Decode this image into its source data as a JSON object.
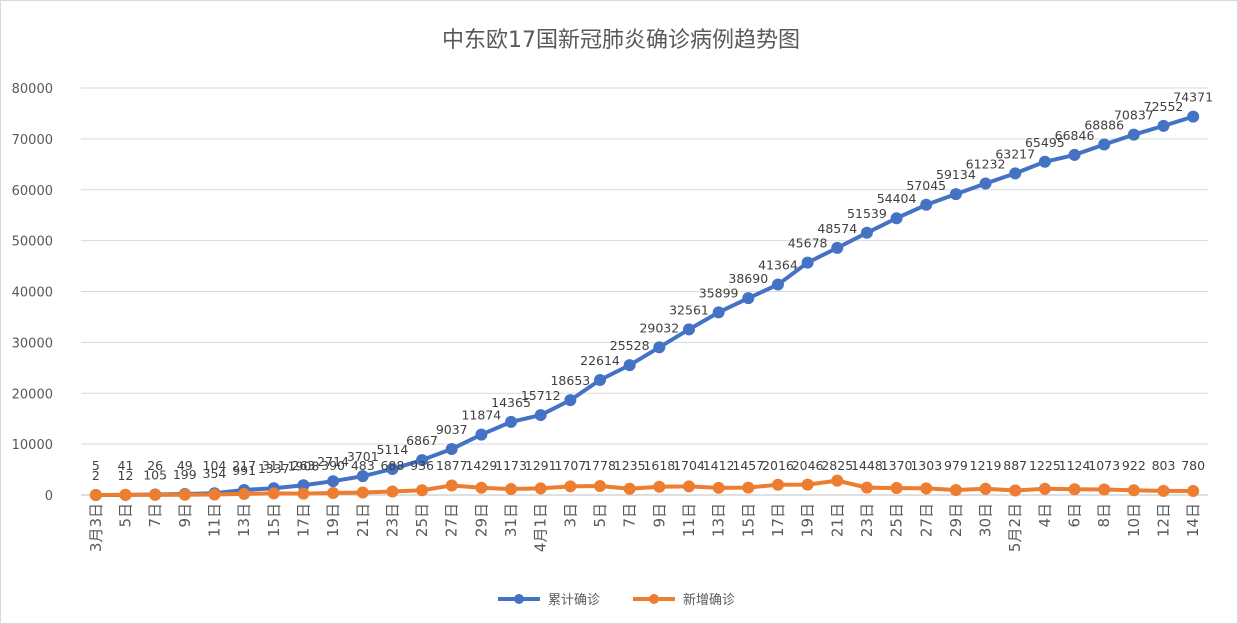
{
  "chart_data": {
    "type": "line",
    "title": "中东欧17国新冠肺炎确诊病例趋势图",
    "xlabel": "",
    "ylabel": "",
    "ylim": [
      0,
      80000
    ],
    "yticks": [
      0,
      10000,
      20000,
      30000,
      40000,
      50000,
      60000,
      70000,
      80000
    ],
    "grid": true,
    "legend_position": "bottom",
    "categories": [
      "3月3日",
      "3月5日",
      "3月7日",
      "3月9日",
      "3月11日",
      "3月13日",
      "3月15日",
      "3月17日",
      "3月19日",
      "3月21日",
      "3月23日",
      "3月25日",
      "3月27日",
      "3月29日",
      "3月31日",
      "4月1日",
      "4月3日",
      "4月5日",
      "4月7日",
      "4月9日",
      "4月11日",
      "4月13日",
      "4月15日",
      "4月17日",
      "4月19日",
      "4月21日",
      "4月23日",
      "4月25日",
      "4月27日",
      "4月29日",
      "4月30日",
      "5月2日",
      "5月4日",
      "5月6日",
      "5月8日",
      "5月10日",
      "5月12日",
      "5月14日"
    ],
    "tick_labels": [
      "3月3日",
      "5日",
      "7日",
      "9日",
      "11日",
      "13日",
      "15日",
      "17日",
      "19日",
      "21日",
      "23日",
      "25日",
      "27日",
      "29日",
      "31日",
      "4月1日",
      "3日",
      "5日",
      "7日",
      "9日",
      "11日",
      "13日",
      "15日",
      "17日",
      "19日",
      "21日",
      "23日",
      "25日",
      "27日",
      "29日",
      "30日",
      "5月2日",
      "4日",
      "6日",
      "8日",
      "10日",
      "12日",
      "14日"
    ],
    "series": [
      {
        "name": "累计确诊",
        "color": "#4472C4",
        "values": [
          2,
          12,
          105,
          199,
          354,
          991,
          1337,
          1908,
          2714,
          3701,
          5114,
          6867,
          9037,
          11874,
          14365,
          15712,
          18653,
          22614,
          25528,
          29032,
          32561,
          35899,
          38690,
          41364,
          45678,
          48574,
          51539,
          54404,
          57045,
          59134,
          61232,
          63217,
          65495,
          66846,
          68886,
          70837,
          72552,
          74371
        ]
      },
      {
        "name": "新增确诊",
        "color": "#ED7D31",
        "values": [
          5,
          41,
          26,
          49,
          104,
          217,
          311,
          263,
          390,
          483,
          688,
          936,
          1877,
          1429,
          1173,
          1291,
          1707,
          1778,
          1235,
          1618,
          1704,
          1412,
          1457,
          2016,
          2046,
          2825,
          1448,
          1370,
          1303,
          979,
          1219,
          887,
          1225,
          1124,
          1073,
          922,
          803,
          780
        ]
      }
    ]
  }
}
